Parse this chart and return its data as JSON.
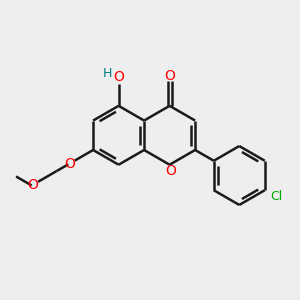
{
  "background_color": "#eeeeee",
  "bond_color": "#1a1a1a",
  "oxygen_color": "#ff0000",
  "chlorine_color": "#00aa00",
  "hydrogen_color": "#008080",
  "figsize": [
    3.0,
    3.0
  ],
  "dpi": 100,
  "xlim": [
    0,
    10
  ],
  "ylim": [
    0,
    10
  ]
}
